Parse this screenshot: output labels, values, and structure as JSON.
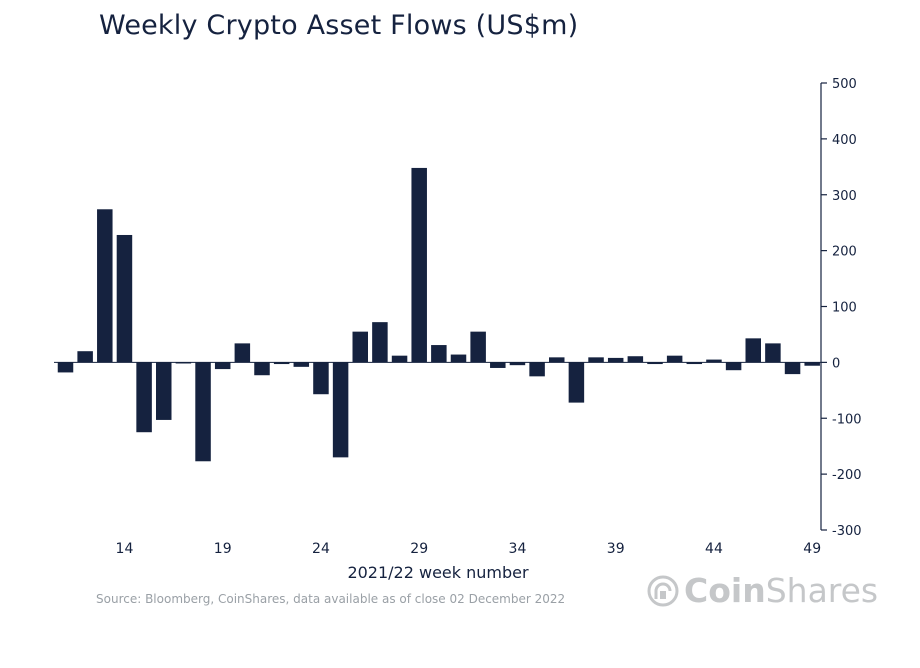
{
  "chart_data": {
    "type": "bar",
    "title": "Weekly Crypto Asset Flows (US$m)",
    "xlabel": "2021/22 week number",
    "ylabel": "",
    "ylim": [
      -300,
      500
    ],
    "yticks": [
      500,
      400,
      300,
      200,
      100,
      0,
      -100,
      -200,
      -300
    ],
    "xtick_labels": [
      "14",
      "19",
      "24",
      "29",
      "34",
      "39",
      "44",
      "49"
    ],
    "weeks": [
      11,
      12,
      13,
      14,
      15,
      16,
      17,
      18,
      19,
      20,
      21,
      22,
      23,
      24,
      25,
      26,
      27,
      28,
      29,
      30,
      31,
      32,
      33,
      34,
      35,
      36,
      37,
      38,
      39,
      40,
      41,
      42,
      43,
      44,
      45,
      46,
      47,
      48,
      49
    ],
    "values": [
      -18,
      20,
      274,
      228,
      -125,
      -103,
      -2,
      -177,
      -12,
      34,
      -23,
      -3,
      -8,
      -57,
      -170,
      55,
      72,
      12,
      348,
      31,
      14,
      55,
      -10,
      -5,
      -25,
      9,
      -72,
      9,
      8,
      11,
      -3,
      12,
      -3,
      5,
      -14,
      43,
      34,
      -21,
      -6
    ],
    "color": "#15223f"
  },
  "source": "Source: Bloomberg, CoinShares, data available as of close 02 December 2022",
  "logo": {
    "brand_bold": "Coin",
    "brand_light": "Shares",
    "icon": "coinshares-logo-icon"
  }
}
